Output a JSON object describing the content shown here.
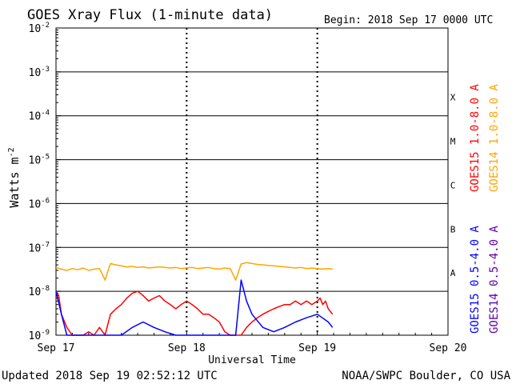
{
  "header": {
    "title": "GOES Xray Flux (1-minute data)",
    "begin": "Begin:  2018 Sep 17 0000 UTC"
  },
  "footer": {
    "updated": "Updated 2018 Sep 19 02:52:12 UTC",
    "credit": "NOAA/SWPC Boulder, CO USA"
  },
  "colors": {
    "goes15_long": "#ff0000",
    "goes14_long": "#ffa500",
    "goes15_short": "#0000ff",
    "goes14_short": "#5a00a8",
    "grid": "#000000",
    "background": "#ffffff"
  },
  "chart_data": {
    "type": "line",
    "title": "GOES Xray Flux (1-minute data)",
    "xlabel": "Universal Time",
    "ylabel": "Watts m",
    "ylabel_superscript": "-2",
    "y_scale": "log",
    "ylim": [
      1e-09,
      0.01
    ],
    "xlim": [
      "2018-09-17 00:00",
      "2018-09-20 00:00"
    ],
    "x_ticks": [
      "Sep 17",
      "Sep 18",
      "Sep 19",
      "Sep 20"
    ],
    "y_ticks": [
      {
        "base": "10",
        "exp": "-9",
        "value": 1e-09
      },
      {
        "base": "10",
        "exp": "-8",
        "value": 1e-08
      },
      {
        "base": "10",
        "exp": "-7",
        "value": 1e-07
      },
      {
        "base": "10",
        "exp": "-6",
        "value": 1e-06
      },
      {
        "base": "10",
        "exp": "-5",
        "value": 1e-05
      },
      {
        "base": "10",
        "exp": "-4",
        "value": 0.0001
      },
      {
        "base": "10",
        "exp": "-3",
        "value": 0.001
      },
      {
        "base": "10",
        "exp": "-2",
        "value": 0.01
      }
    ],
    "flare_classes": [
      {
        "label": "A",
        "value": 1e-08
      },
      {
        "label": "B",
        "value": 1e-07
      },
      {
        "label": "C",
        "value": 1e-06
      },
      {
        "label": "M",
        "value": 1e-05
      },
      {
        "label": "X",
        "value": 0.0001
      }
    ],
    "grid": "horizontal lines at each decade; dotted vertical lines at each day",
    "legend_placement": "right, vertical text",
    "series": [
      {
        "name": "GOES15 1.0-8.0 A",
        "color": "#ff0000",
        "x_hours": [
          0,
          0.5,
          1,
          2,
          3,
          4,
          5,
          6,
          7,
          8,
          9,
          10,
          11,
          12,
          13,
          14,
          15,
          16,
          17,
          18,
          19,
          20,
          21,
          22,
          23,
          24,
          25,
          26,
          27,
          28,
          29,
          30,
          31,
          32,
          33,
          34,
          35,
          36,
          37,
          38,
          39,
          40,
          41,
          42,
          43,
          44,
          45,
          46,
          47,
          48,
          48.5,
          49,
          49.5,
          50,
          50.8
        ],
        "values": [
          1e-08,
          8e-09,
          3e-09,
          1.5e-09,
          1e-09,
          1e-09,
          1e-09,
          1.2e-09,
          1e-09,
          1.5e-09,
          1e-09,
          3e-09,
          4e-09,
          5e-09,
          7e-09,
          9e-09,
          1e-08,
          8e-09,
          6e-09,
          7e-09,
          8e-09,
          6e-09,
          5e-09,
          4e-09,
          5e-09,
          6e-09,
          5e-09,
          4e-09,
          3e-09,
          3e-09,
          2.5e-09,
          2e-09,
          1.2e-09,
          1e-09,
          1e-09,
          1e-09,
          1.5e-09,
          2e-09,
          2.5e-09,
          3e-09,
          3.5e-09,
          4e-09,
          4.5e-09,
          5e-09,
          5e-09,
          6e-09,
          5e-09,
          6e-09,
          5e-09,
          6e-09,
          7e-09,
          5e-09,
          6e-09,
          4e-09,
          3e-09
        ]
      },
      {
        "name": "GOES14 1.0-8.0 A",
        "color": "#ffa500",
        "x_hours": [
          0,
          1,
          2,
          3,
          4,
          5,
          6,
          7,
          8,
          9,
          10,
          11,
          12,
          13,
          14,
          15,
          16,
          17,
          18,
          19,
          20,
          21,
          22,
          23,
          24,
          25,
          26,
          27,
          28,
          29,
          30,
          31,
          32,
          33,
          34,
          35,
          36,
          37,
          38,
          39,
          40,
          41,
          42,
          43,
          44,
          45,
          46,
          47,
          48,
          49,
          50,
          50.8
        ],
        "values": [
          3.5e-08,
          3.2e-08,
          3e-08,
          3.3e-08,
          3.1e-08,
          3.4e-08,
          3e-08,
          3.2e-08,
          3.3e-08,
          1.8e-08,
          4.3e-08,
          4e-08,
          3.8e-08,
          3.6e-08,
          3.7e-08,
          3.5e-08,
          3.6e-08,
          3.4e-08,
          3.5e-08,
          3.6e-08,
          3.5e-08,
          3.4e-08,
          3.5e-08,
          3.3e-08,
          3.4e-08,
          3.5e-08,
          3.3e-08,
          3.4e-08,
          3.5e-08,
          3.3e-08,
          3.2e-08,
          3.4e-08,
          3.3e-08,
          1.8e-08,
          4.2e-08,
          4.5e-08,
          4.3e-08,
          4.1e-08,
          4e-08,
          3.9e-08,
          3.8e-08,
          3.7e-08,
          3.6e-08,
          3.5e-08,
          3.4e-08,
          3.5e-08,
          3.3e-08,
          3.4e-08,
          3.3e-08,
          3.2e-08,
          3.3e-08,
          3.2e-08
        ]
      },
      {
        "name": "GOES15 0.5-4.0 A",
        "color": "#0000ff",
        "x_hours": [
          0,
          1,
          2,
          3,
          4,
          5,
          6,
          7,
          8,
          9,
          10,
          12,
          14,
          16,
          18,
          20,
          22,
          24,
          26,
          28,
          30,
          31,
          32,
          33,
          34,
          35,
          36,
          38,
          40,
          42,
          44,
          46,
          48,
          50,
          50.8
        ],
        "values": [
          1e-08,
          3e-09,
          1e-09,
          1e-09,
          1e-09,
          1e-09,
          1e-09,
          1e-09,
          1e-09,
          1e-09,
          1e-09,
          1e-09,
          1.5e-09,
          2e-09,
          1.5e-09,
          1.2e-09,
          1e-09,
          1e-09,
          1e-09,
          1e-09,
          1e-09,
          1e-09,
          1e-09,
          1e-09,
          1.8e-08,
          6e-09,
          3e-09,
          1.5e-09,
          1.2e-09,
          1.5e-09,
          2e-09,
          2.5e-09,
          3e-09,
          2e-09,
          1.5e-09
        ]
      },
      {
        "name": "GOES14 0.5-4.0 A",
        "color": "#5a00a8",
        "x_hours": [],
        "values": []
      }
    ]
  }
}
